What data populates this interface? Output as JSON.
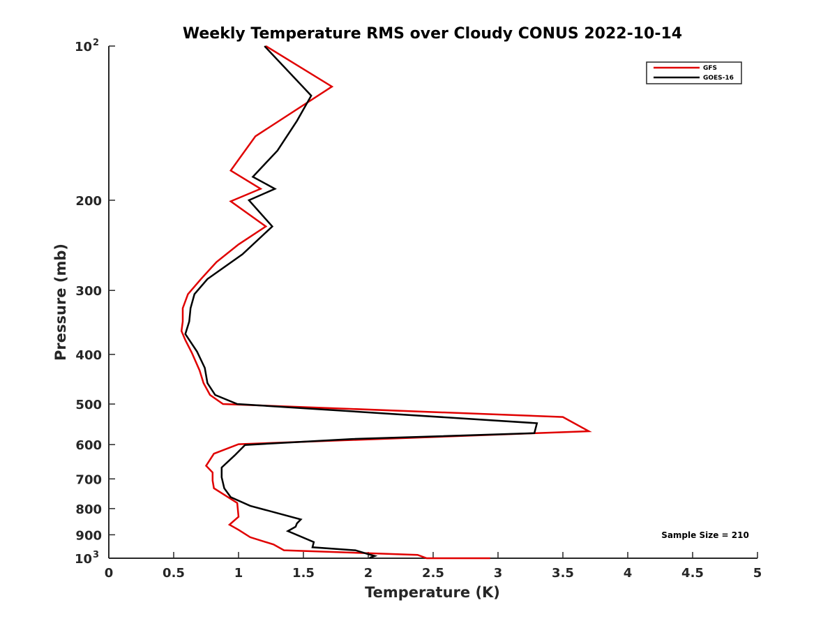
{
  "chart_data": {
    "type": "line",
    "title": "Weekly Temperature RMS over Cloudy CONUS 2022-10-14",
    "xlabel": "Temperature (K)",
    "ylabel": "Pressure (mb)",
    "xlim": [
      0,
      5
    ],
    "ylim": [
      100,
      1000
    ],
    "y_scale": "log",
    "y_reversed": true,
    "grid": false,
    "legend_position": "top-right",
    "x_ticks": [
      {
        "value": 0,
        "label": "0"
      },
      {
        "value": 0.5,
        "label": "0.5"
      },
      {
        "value": 1,
        "label": "1"
      },
      {
        "value": 1.5,
        "label": "1.5"
      },
      {
        "value": 2,
        "label": "2"
      },
      {
        "value": 2.5,
        "label": "2.5"
      },
      {
        "value": 3,
        "label": "3"
      },
      {
        "value": 3.5,
        "label": "3.5"
      },
      {
        "value": 4,
        "label": "4"
      },
      {
        "value": 4.5,
        "label": "4.5"
      },
      {
        "value": 5,
        "label": "5"
      }
    ],
    "y_ticks": [
      {
        "value": 100,
        "base": "10",
        "exp": "2"
      },
      {
        "value": 200,
        "label": "200"
      },
      {
        "value": 300,
        "label": "300"
      },
      {
        "value": 400,
        "label": "400"
      },
      {
        "value": 500,
        "label": "500"
      },
      {
        "value": 600,
        "label": "600"
      },
      {
        "value": 700,
        "label": "700"
      },
      {
        "value": 800,
        "label": "800"
      },
      {
        "value": 900,
        "label": "900"
      },
      {
        "value": 1000,
        "base": "10",
        "exp": "3"
      }
    ],
    "annotation": "Sample Size = 210",
    "series": [
      {
        "name": "GFS",
        "color": "#e00000",
        "points": [
          [
            1.21,
            100
          ],
          [
            1.72,
            120
          ],
          [
            1.13,
            150
          ],
          [
            0.94,
            175
          ],
          [
            1.17,
            190
          ],
          [
            0.94,
            201
          ],
          [
            1.21,
            225
          ],
          [
            1.0,
            244
          ],
          [
            0.83,
            264
          ],
          [
            0.71,
            285
          ],
          [
            0.61,
            305
          ],
          [
            0.57,
            325
          ],
          [
            0.57,
            345
          ],
          [
            0.56,
            360
          ],
          [
            0.59,
            375
          ],
          [
            0.64,
            397
          ],
          [
            0.7,
            430
          ],
          [
            0.73,
            455
          ],
          [
            0.78,
            480
          ],
          [
            0.88,
            500
          ],
          [
            3.5,
            530
          ],
          [
            3.7,
            565
          ],
          [
            1.0,
            599
          ],
          [
            0.81,
            625
          ],
          [
            0.75,
            660
          ],
          [
            0.8,
            680
          ],
          [
            0.8,
            705
          ],
          [
            0.81,
            730
          ],
          [
            0.99,
            780
          ],
          [
            1.0,
            830
          ],
          [
            0.93,
            860
          ],
          [
            1.0,
            880
          ],
          [
            1.09,
            910
          ],
          [
            1.27,
            940
          ],
          [
            1.35,
            965
          ],
          [
            2.38,
            985
          ],
          [
            2.45,
            1000
          ],
          [
            2.94,
            1000
          ]
        ]
      },
      {
        "name": "GOES-16",
        "color": "#000000",
        "points": [
          [
            1.2,
            100
          ],
          [
            1.56,
            125
          ],
          [
            1.45,
            140
          ],
          [
            1.3,
            160
          ],
          [
            1.11,
            180
          ],
          [
            1.28,
            190
          ],
          [
            1.08,
            200
          ],
          [
            1.26,
            225
          ],
          [
            1.03,
            255
          ],
          [
            0.76,
            285
          ],
          [
            0.66,
            305
          ],
          [
            0.63,
            325
          ],
          [
            0.62,
            345
          ],
          [
            0.59,
            365
          ],
          [
            0.68,
            395
          ],
          [
            0.74,
            425
          ],
          [
            0.76,
            455
          ],
          [
            0.82,
            480
          ],
          [
            0.99,
            500
          ],
          [
            3.3,
            545
          ],
          [
            3.28,
            570
          ],
          [
            1.88,
            585
          ],
          [
            1.05,
            601
          ],
          [
            0.97,
            630
          ],
          [
            0.87,
            665
          ],
          [
            0.87,
            695
          ],
          [
            0.89,
            730
          ],
          [
            0.94,
            760
          ],
          [
            1.09,
            790
          ],
          [
            1.48,
            840
          ],
          [
            1.45,
            855
          ],
          [
            1.44,
            868
          ],
          [
            1.38,
            885
          ],
          [
            1.58,
            930
          ],
          [
            1.57,
            952
          ],
          [
            1.9,
            965
          ],
          [
            2.0,
            982
          ],
          [
            2.05,
            990
          ],
          [
            2.01,
            998
          ]
        ]
      }
    ]
  }
}
